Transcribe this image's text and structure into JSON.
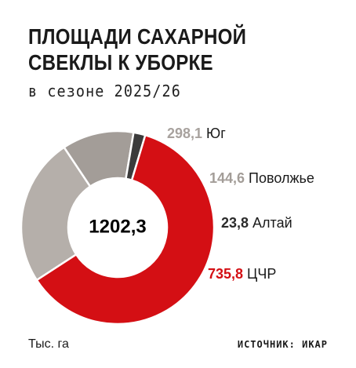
{
  "header": {
    "title_line1": "ПЛОЩАДИ САХАРНОЙ",
    "title_line2": "СВЕКЛЫ К УБОРКЕ",
    "subtitle": "в сезоне 2025/26"
  },
  "footer": {
    "unit": "Тыс. га",
    "source": "ИСТОЧНИК: ИКАР"
  },
  "chart_data": {
    "type": "pie",
    "title": "ПЛОЩАДИ САХАРНОЙ СВЕКЛЫ К УБОРКЕ",
    "subtitle": "в сезоне 2025/26",
    "unit": "Тыс. га",
    "total_label": "1202,3",
    "total": 1202.3,
    "slices": [
      {
        "name": "Юг",
        "value": 298.1,
        "value_label": "298,1",
        "color": "#b5afaa",
        "label_color": "#a8a29e"
      },
      {
        "name": "Поволжье",
        "value": 144.6,
        "value_label": "144,6",
        "color": "#a39d98",
        "label_color": "#a39d98"
      },
      {
        "name": "Алтай",
        "value": 23.8,
        "value_label": "23,8",
        "color": "#3b3b3b",
        "label_color": "#2b2b2b"
      },
      {
        "name": "ЦЧР",
        "value": 735.8,
        "value_label": "735,8",
        "color": "#d40f14",
        "label_color": "#d40f14"
      }
    ]
  }
}
